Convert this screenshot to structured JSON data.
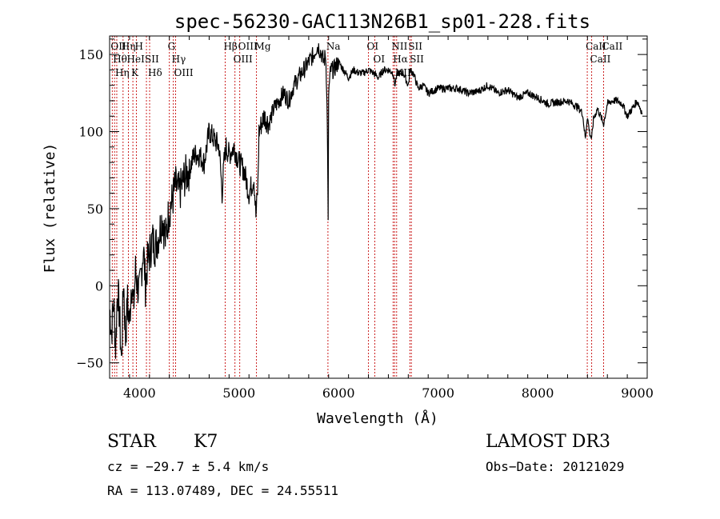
{
  "chart_data": {
    "type": "line",
    "title": "spec-56230-GAC113N26B1_sp01-228.fits",
    "xlabel": "Wavelength (Å)",
    "ylabel": "Flux (relative)",
    "xlim": [
      3700,
      9100
    ],
    "ylim": [
      -60,
      162
    ],
    "xticks": [
      4000,
      5000,
      6000,
      7000,
      8000,
      9000
    ],
    "yticks": [
      -50,
      0,
      50,
      100,
      150
    ],
    "series": [
      {
        "name": "flux",
        "x": [
          3700,
          3720,
          3740,
          3760,
          3780,
          3800,
          3820,
          3840,
          3860,
          3880,
          3900,
          3920,
          3940,
          3960,
          3980,
          4000,
          4020,
          4040,
          4060,
          4080,
          4100,
          4130,
          4160,
          4200,
          4230,
          4260,
          4300,
          4330,
          4360,
          4400,
          4450,
          4500,
          4550,
          4600,
          4650,
          4700,
          4750,
          4800,
          4830,
          4850,
          4870,
          4900,
          4950,
          5000,
          5050,
          5100,
          5150,
          5170,
          5190,
          5200,
          5250,
          5300,
          5350,
          5400,
          5450,
          5500,
          5550,
          5600,
          5650,
          5700,
          5750,
          5780,
          5800,
          5830,
          5850,
          5870,
          5880,
          5890,
          5895,
          5900,
          5920,
          5950,
          6000,
          6050,
          6100,
          6150,
          6200,
          6250,
          6300,
          6350,
          6400,
          6450,
          6500,
          6550,
          6563,
          6580,
          6600,
          6650,
          6700,
          6720,
          6750,
          6800,
          6850,
          6900,
          7000,
          7100,
          7200,
          7300,
          7400,
          7500,
          7600,
          7700,
          7800,
          7900,
          8000,
          8100,
          8200,
          8300,
          8400,
          8450,
          8480,
          8498,
          8520,
          8542,
          8560,
          8600,
          8662,
          8700,
          8750,
          8800,
          8850,
          8900,
          8950,
          9000,
          9050
        ],
        "values": [
          -15,
          -30,
          -10,
          -40,
          0,
          -20,
          -50,
          5,
          -35,
          -10,
          -25,
          5,
          -15,
          10,
          0,
          -5,
          10,
          25,
          0,
          15,
          20,
          30,
          25,
          35,
          45,
          30,
          50,
          55,
          65,
          60,
          70,
          75,
          85,
          85,
          80,
          100,
          95,
          90,
          60,
          80,
          90,
          85,
          90,
          80,
          75,
          60,
          70,
          45,
          65,
          100,
          110,
          105,
          115,
          120,
          125,
          120,
          130,
          135,
          140,
          145,
          150,
          155,
          155,
          150,
          145,
          150,
          130,
          90,
          40,
          125,
          140,
          140,
          145,
          140,
          135,
          140,
          138,
          138,
          140,
          138,
          135,
          140,
          140,
          138,
          130,
          135,
          138,
          138,
          130,
          140,
          138,
          128,
          130,
          125,
          128,
          128,
          128,
          125,
          126,
          130,
          125,
          127,
          122,
          125,
          122,
          118,
          119,
          120,
          116,
          112,
          95,
          110,
          100,
          95,
          108,
          115,
          105,
          118,
          120,
          120,
          118,
          110,
          115,
          120,
          112
        ]
      }
    ],
    "line_markers": [
      {
        "wave": 3727,
        "label": "OII"
      },
      {
        "wave": 3750,
        "label": "Hθ"
      },
      {
        "wave": 3772,
        "label": "Hη"
      },
      {
        "wave": 3835,
        "label": "Hη"
      },
      {
        "wave": 3889,
        "label": "HeI"
      },
      {
        "wave": 3934,
        "label": "K"
      },
      {
        "wave": 3969,
        "label": "H"
      },
      {
        "wave": 4070,
        "label": "SII"
      },
      {
        "wave": 4102,
        "label": "Hδ"
      },
      {
        "wave": 4300,
        "label": "G"
      },
      {
        "wave": 4340,
        "label": "Hγ"
      },
      {
        "wave": 4363,
        "label": "OIII"
      },
      {
        "wave": 4861,
        "label": "Hβ"
      },
      {
        "wave": 4959,
        "label": "OIII"
      },
      {
        "wave": 5007,
        "label": "OIII"
      },
      {
        "wave": 5175,
        "label": "Mg"
      },
      {
        "wave": 5893,
        "label": "Na"
      },
      {
        "wave": 6300,
        "label": "OI"
      },
      {
        "wave": 6364,
        "label": "OI"
      },
      {
        "wave": 6548,
        "label": "NII"
      },
      {
        "wave": 6563,
        "label": "Hα"
      },
      {
        "wave": 6583,
        "label": "NII"
      },
      {
        "wave": 6716,
        "label": "SII"
      },
      {
        "wave": 6731,
        "label": "SII"
      },
      {
        "wave": 8498,
        "label": "CaII"
      },
      {
        "wave": 8542,
        "label": "CaII"
      },
      {
        "wave": 8662,
        "label": "CaII"
      }
    ]
  },
  "info": {
    "object_class": "STAR",
    "subclass": "K7",
    "survey": "LAMOST DR3",
    "cz": "cz = −29.7 ± 5.4 km/s",
    "obs_date": "Obs−Date: 20121029",
    "coords": "RA = 113.07489, DEC =  24.55511"
  }
}
